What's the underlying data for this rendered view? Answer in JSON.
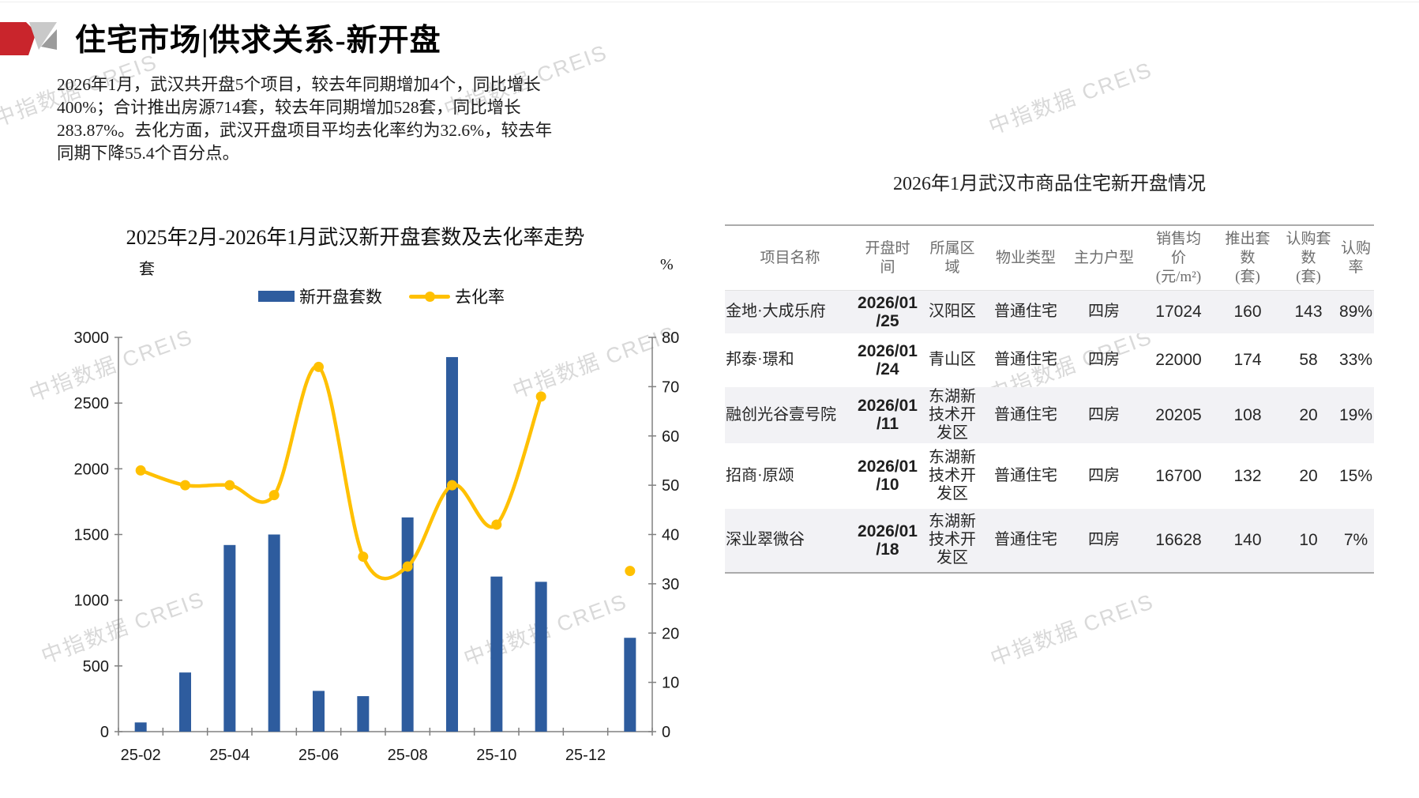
{
  "header": {
    "title": "住宅市场|供求关系-新开盘",
    "logo": {
      "name": "creis-logo",
      "red": "#c9252c",
      "gray_light": "#c9c9c9",
      "gray_dark": "#9b9b9b"
    }
  },
  "summary": "2026年1月，武汉共开盘5个项目，较去年同期增加4个，同比增长\n400%；合计推出房源714套，较去年同期增加528套，同比增长\n283.87%。去化方面，武汉开盘项目平均去化率约为32.6%，较去年\n同期下降55.4个百分点。",
  "watermark": {
    "text": "中指数据 CREIS",
    "color": "#d9d9d9"
  },
  "chart_data": {
    "type": "bar+line",
    "title": "2025年2月-2026年1月武汉新开盘套数及去化率走势",
    "categories": [
      "25-02",
      "25-03",
      "25-04",
      "25-05",
      "25-06",
      "25-07",
      "25-08",
      "25-09",
      "25-10",
      "25-11",
      "25-12",
      "26-01"
    ],
    "series": [
      {
        "name": "新开盘套数",
        "type": "bar",
        "axis": "left",
        "color": "#2e5c9e",
        "values": [
          70,
          450,
          1420,
          1500,
          310,
          270,
          1630,
          2850,
          1180,
          1140,
          0,
          714
        ]
      },
      {
        "name": "去化率",
        "type": "line",
        "axis": "right",
        "color": "#ffc000",
        "values": [
          53,
          50,
          50,
          48,
          74,
          35.5,
          33.5,
          50,
          42,
          68,
          null,
          32.6
        ]
      }
    ],
    "left_axis": {
      "unit": "套",
      "min": 0,
      "max": 3000,
      "step": 500
    },
    "right_axis": {
      "unit": "%",
      "min": 0,
      "max": 80,
      "step": 10
    },
    "x_tick_labels": [
      "25-02",
      "25-04",
      "25-06",
      "25-08",
      "25-10",
      "25-12"
    ],
    "legend_position": "top",
    "grid": false,
    "axis_color": "#808080",
    "label_color": "#1a1a1a"
  },
  "table": {
    "title": "2026年1月武汉市商品住宅新开盘情况",
    "headers": [
      "项目名称",
      "开盘时\n间",
      "所属区\n域",
      "物业类型",
      "主力户型",
      "销售均\n价\n(元/m²)",
      "推出套\n数\n(套)",
      "认购套\n数\n(套)",
      "认购\n率"
    ],
    "rows": [
      [
        "金地·大成乐府",
        "2026/01\n/25",
        "汉阳区",
        "普通住宅",
        "四房",
        "17024",
        "160",
        "143",
        "89%"
      ],
      [
        "邦泰·璟和",
        "2026/01\n/24",
        "青山区",
        "普通住宅",
        "四房",
        "22000",
        "174",
        "58",
        "33%"
      ],
      [
        "融创光谷壹号院",
        "2026/01\n/11",
        "东湖新\n技术开\n发区",
        "普通住宅",
        "四房",
        "20205",
        "108",
        "20",
        "19%"
      ],
      [
        "招商·原颂",
        "2026/01\n/10",
        "东湖新\n技术开\n发区",
        "普通住宅",
        "四房",
        "16700",
        "132",
        "20",
        "15%"
      ],
      [
        "深业翠微谷",
        "2026/01\n/18",
        "东湖新\n技术开\n发区",
        "普通住宅",
        "四房",
        "16628",
        "140",
        "10",
        "7%"
      ]
    ],
    "alt_row_bg": "#f2f2f5"
  }
}
